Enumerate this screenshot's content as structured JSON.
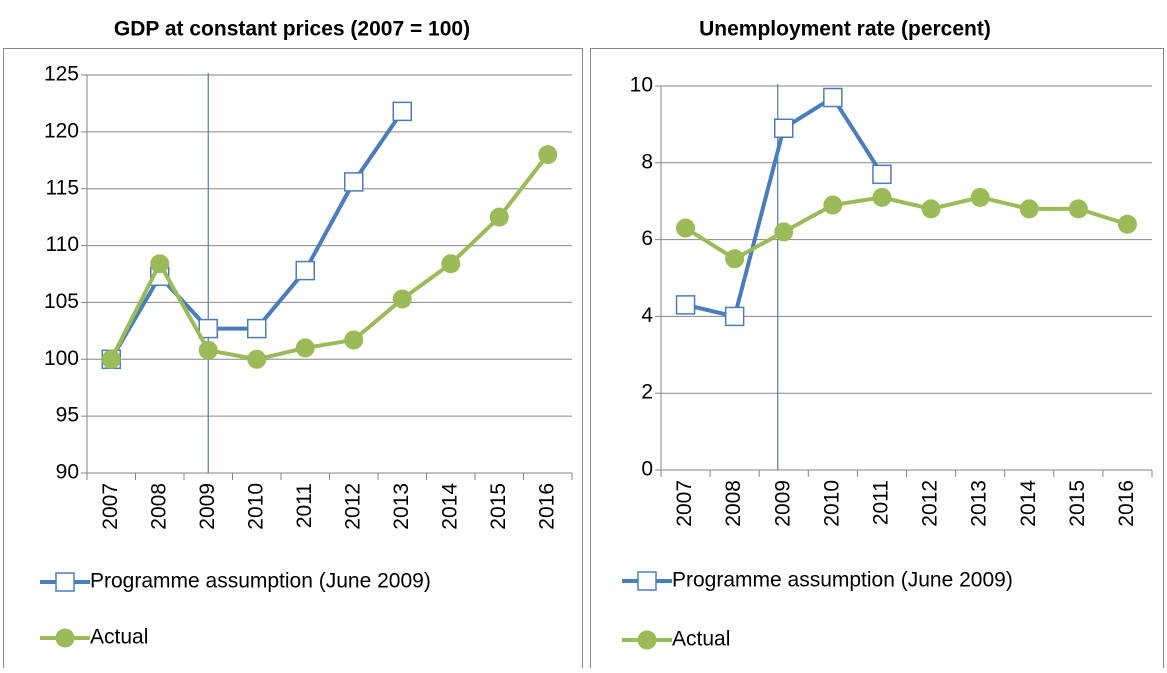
{
  "chart_data": [
    {
      "type": "line",
      "title": "GDP at constant prices (2007 = 100)",
      "categories": [
        "2007",
        "2008",
        "2009",
        "2010",
        "2011",
        "2012",
        "2013",
        "2014",
        "2015",
        "2016"
      ],
      "series": [
        {
          "name": "Programme assumption (June 2009)",
          "color": "#4a7ebb",
          "marker": "square",
          "values": [
            100,
            107.3,
            102.7,
            102.7,
            107.8,
            115.6,
            121.8,
            null,
            null,
            null
          ]
        },
        {
          "name": "Actual",
          "color": "#9bbb59",
          "marker": "circle",
          "values": [
            100,
            108.4,
            100.8,
            100,
            101,
            101.7,
            105.3,
            108.4,
            112.5,
            118
          ]
        }
      ],
      "ylim": [
        90,
        125
      ],
      "yticks": [
        90,
        95,
        100,
        105,
        110,
        115,
        120,
        125
      ],
      "grid": true,
      "reference_line": "2009"
    },
    {
      "type": "line",
      "title": "Unemployment rate (percent)",
      "categories": [
        "2007",
        "2008",
        "2009",
        "2010",
        "2011",
        "2012",
        "2013",
        "2014",
        "2015",
        "2016"
      ],
      "series": [
        {
          "name": "Programme assumption (June 2009)",
          "color": "#4a7ebb",
          "marker": "square",
          "values": [
            4.3,
            4.0,
            8.9,
            9.7,
            7.7,
            null,
            null,
            null,
            null,
            null
          ]
        },
        {
          "name": "Actual",
          "color": "#9bbb59",
          "marker": "circle",
          "values": [
            6.3,
            5.5,
            6.2,
            6.9,
            7.1,
            6.8,
            7.1,
            6.8,
            6.8,
            6.4
          ]
        }
      ],
      "ylim": [
        0,
        10
      ],
      "yticks": [
        0,
        2,
        4,
        6,
        8,
        10
      ],
      "grid": true,
      "reference_line": "2009"
    }
  ]
}
